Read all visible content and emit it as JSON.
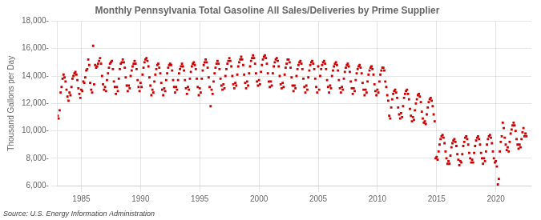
{
  "chart_data": {
    "type": "scatter",
    "title": "Monthly Pennsylvania Total Gasoline All Sales/Deliveries by Prime Supplier",
    "y_label": "Thousand Gallons per Day",
    "annotations": [
      "Source: U.S. Energy Information Administration"
    ],
    "color": "#cc0000",
    "marker": "square",
    "grid": true,
    "xlim": [
      1983.0,
      2023.0
    ],
    "xticks": [
      1985,
      1990,
      1995,
      2000,
      2005,
      2010,
      2015,
      2020
    ],
    "ylim": [
      6000,
      18000
    ],
    "yticks": [
      {
        "value": 6000,
        "label": "6,000-"
      },
      {
        "value": 8000,
        "label": "8,000-"
      },
      {
        "value": 10000,
        "label": "10,000-"
      },
      {
        "value": 12000,
        "label": "12,000-"
      },
      {
        "value": 14000,
        "label": "14,000-"
      },
      {
        "value": 16000,
        "label": "16,000-"
      },
      {
        "value": 18000,
        "label": "18,000-"
      }
    ],
    "x": [
      1983.0,
      1983.083,
      1983.167,
      1983.25,
      1983.333,
      1983.417,
      1983.5,
      1983.583,
      1983.667,
      1983.75,
      1983.833,
      1983.917,
      1984.0,
      1984.083,
      1984.167,
      1984.25,
      1984.333,
      1984.417,
      1984.5,
      1984.583,
      1984.667,
      1984.75,
      1984.833,
      1984.917,
      1985.0,
      1985.083,
      1985.167,
      1985.25,
      1985.333,
      1985.417,
      1985.5,
      1985.583,
      1985.667,
      1985.75,
      1985.833,
      1985.917,
      1986.0,
      1986.083,
      1986.167,
      1986.25,
      1986.333,
      1986.417,
      1986.5,
      1986.583,
      1986.667,
      1986.75,
      1986.833,
      1986.917,
      1987.0,
      1987.083,
      1987.167,
      1987.25,
      1987.333,
      1987.417,
      1987.5,
      1987.583,
      1987.667,
      1987.75,
      1987.833,
      1987.917,
      1988.0,
      1988.083,
      1988.167,
      1988.25,
      1988.333,
      1988.417,
      1988.5,
      1988.583,
      1988.667,
      1988.75,
      1988.833,
      1988.917,
      1989.0,
      1989.083,
      1989.167,
      1989.25,
      1989.333,
      1989.417,
      1989.5,
      1989.583,
      1989.667,
      1989.75,
      1989.833,
      1989.917,
      1990.0,
      1990.083,
      1990.167,
      1990.25,
      1990.333,
      1990.417,
      1990.5,
      1990.583,
      1990.667,
      1990.75,
      1990.833,
      1990.917,
      1991.0,
      1991.083,
      1991.167,
      1991.25,
      1991.333,
      1991.417,
      1991.5,
      1991.583,
      1991.667,
      1991.75,
      1991.833,
      1991.917,
      1992.0,
      1992.083,
      1992.167,
      1992.25,
      1992.333,
      1992.417,
      1992.5,
      1992.583,
      1992.667,
      1992.75,
      1992.833,
      1992.917,
      1993.0,
      1993.083,
      1993.167,
      1993.25,
      1993.333,
      1993.417,
      1993.5,
      1993.583,
      1993.667,
      1993.75,
      1993.833,
      1993.917,
      1994.0,
      1994.083,
      1994.167,
      1994.25,
      1994.333,
      1994.417,
      1994.5,
      1994.583,
      1994.667,
      1994.75,
      1994.833,
      1994.917,
      1995.0,
      1995.083,
      1995.167,
      1995.25,
      1995.333,
      1995.417,
      1995.5,
      1995.583,
      1995.667,
      1995.75,
      1995.833,
      1995.917,
      1996.0,
      1996.083,
      1996.167,
      1996.25,
      1996.333,
      1996.417,
      1996.5,
      1996.583,
      1996.667,
      1996.75,
      1996.833,
      1996.917,
      1997.0,
      1997.083,
      1997.167,
      1997.25,
      1997.333,
      1997.417,
      1997.5,
      1997.583,
      1997.667,
      1997.75,
      1997.833,
      1997.917,
      1998.0,
      1998.083,
      1998.167,
      1998.25,
      1998.333,
      1998.417,
      1998.5,
      1998.583,
      1998.667,
      1998.75,
      1998.833,
      1998.917,
      1999.0,
      1999.083,
      1999.167,
      1999.25,
      1999.333,
      1999.417,
      1999.5,
      1999.583,
      1999.667,
      1999.75,
      1999.833,
      1999.917,
      2000.0,
      2000.083,
      2000.167,
      2000.25,
      2000.333,
      2000.417,
      2000.5,
      2000.583,
      2000.667,
      2000.75,
      2000.833,
      2000.917,
      2001.0,
      2001.083,
      2001.167,
      2001.25,
      2001.333,
      2001.417,
      2001.5,
      2001.583,
      2001.667,
      2001.75,
      2001.833,
      2001.917,
      2002.0,
      2002.083,
      2002.167,
      2002.25,
      2002.333,
      2002.417,
      2002.5,
      2002.583,
      2002.667,
      2002.75,
      2002.833,
      2002.917,
      2003.0,
      2003.083,
      2003.167,
      2003.25,
      2003.333,
      2003.417,
      2003.5,
      2003.583,
      2003.667,
      2003.75,
      2003.833,
      2003.917,
      2004.0,
      2004.083,
      2004.167,
      2004.25,
      2004.333,
      2004.417,
      2004.5,
      2004.583,
      2004.667,
      2004.75,
      2004.833,
      2004.917,
      2005.0,
      2005.083,
      2005.167,
      2005.25,
      2005.333,
      2005.417,
      2005.5,
      2005.583,
      2005.667,
      2005.75,
      2005.833,
      2005.917,
      2006.0,
      2006.083,
      2006.167,
      2006.25,
      2006.333,
      2006.417,
      2006.5,
      2006.583,
      2006.667,
      2006.75,
      2006.833,
      2006.917,
      2007.0,
      2007.083,
      2007.167,
      2007.25,
      2007.333,
      2007.417,
      2007.5,
      2007.583,
      2007.667,
      2007.75,
      2007.833,
      2007.917,
      2008.0,
      2008.083,
      2008.167,
      2008.25,
      2008.333,
      2008.417,
      2008.5,
      2008.583,
      2008.667,
      2008.75,
      2008.833,
      2008.917,
      2009.0,
      2009.083,
      2009.167,
      2009.25,
      2009.333,
      2009.417,
      2009.5,
      2009.583,
      2009.667,
      2009.75,
      2009.833,
      2009.917,
      2010.0,
      2010.083,
      2010.167,
      2010.25,
      2010.333,
      2010.417,
      2010.5,
      2010.583,
      2010.667,
      2010.75,
      2010.833,
      2010.917,
      2011.0,
      2011.083,
      2011.167,
      2011.25,
      2011.333,
      2011.417,
      2011.5,
      2011.583,
      2011.667,
      2011.75,
      2011.833,
      2011.917,
      2012.0,
      2012.083,
      2012.167,
      2012.25,
      2012.333,
      2012.417,
      2012.5,
      2012.583,
      2012.667,
      2012.75,
      2012.833,
      2012.917,
      2013.0,
      2013.083,
      2013.167,
      2013.25,
      2013.333,
      2013.417,
      2013.5,
      2013.583,
      2013.667,
      2013.75,
      2013.833,
      2013.917,
      2014.0,
      2014.083,
      2014.167,
      2014.25,
      2014.333,
      2014.417,
      2014.5,
      2014.583,
      2014.667,
      2014.75,
      2014.833,
      2014.917,
      2015.0,
      2015.083,
      2015.167,
      2015.25,
      2015.333,
      2015.417,
      2015.5,
      2015.583,
      2015.667,
      2015.75,
      2015.833,
      2015.917,
      2016.0,
      2016.083,
      2016.167,
      2016.25,
      2016.333,
      2016.417,
      2016.5,
      2016.583,
      2016.667,
      2016.75,
      2016.833,
      2016.917,
      2017.0,
      2017.083,
      2017.167,
      2017.25,
      2017.333,
      2017.417,
      2017.5,
      2017.583,
      2017.667,
      2017.75,
      2017.833,
      2017.917,
      2018.0,
      2018.083,
      2018.167,
      2018.25,
      2018.333,
      2018.417,
      2018.5,
      2018.583,
      2018.667,
      2018.75,
      2018.833,
      2018.917,
      2019.0,
      2019.083,
      2019.167,
      2019.25,
      2019.333,
      2019.417,
      2019.5,
      2019.583,
      2019.667,
      2019.75,
      2019.833,
      2019.917,
      2020.0,
      2020.083,
      2020.167,
      2020.25,
      2020.333,
      2020.417,
      2020.5,
      2020.583,
      2020.667,
      2020.75,
      2020.833,
      2020.917,
      2021.0,
      2021.083,
      2021.167,
      2021.25,
      2021.333,
      2021.417,
      2021.5,
      2021.583,
      2021.667,
      2021.75,
      2021.833,
      2021.917,
      2022.0,
      2022.083,
      2022.167,
      2022.25,
      2022.333,
      2022.417,
      2022.5,
      2022.583
    ],
    "values": [
      11100,
      10900,
      11500,
      12800,
      13200,
      13800,
      14100,
      13900,
      13600,
      13000,
      12500,
      12200,
      12800,
      12600,
      13200,
      13800,
      14000,
      14200,
      14300,
      14100,
      13700,
      13100,
      12700,
      12400,
      13000,
      12900,
      13600,
      13500,
      13900,
      14400,
      14500,
      15200,
      14800,
      13500,
      13000,
      12800,
      16200,
      13400,
      14800,
      14600,
      14700,
      14900,
      15100,
      15300,
      14900,
      14000,
      13400,
      13000,
      13200,
      12900,
      13700,
      14200,
      14600,
      14900,
      15000,
      15100,
      14500,
      13600,
      13200,
      12700,
      13200,
      12900,
      13800,
      14500,
      14900,
      15000,
      15200,
      15000,
      14600,
      13900,
      13300,
      12900,
      13300,
      13100,
      14000,
      14400,
      14700,
      14900,
      15100,
      14900,
      14500,
      13700,
      13200,
      12900,
      13500,
      13200,
      14100,
      14600,
      15000,
      15200,
      15300,
      15100,
      14700,
      13900,
      13300,
      12600,
      13000,
      12800,
      13600,
      14100,
      14500,
      14800,
      14900,
      14600,
      14200,
      13500,
      13000,
      12600,
      13100,
      12900,
      13700,
      14200,
      14600,
      14800,
      14900,
      14800,
      14400,
      13700,
      13200,
      12800,
      13200,
      13000,
      13700,
      14200,
      14500,
      14700,
      14900,
      14700,
      14400,
      13700,
      13100,
      12700,
      13200,
      13000,
      13800,
      14300,
      14700,
      14900,
      15000,
      14800,
      14500,
      13800,
      13200,
      12600,
      13100,
      12800,
      13800,
      14400,
      14800,
      15000,
      15200,
      15000,
      14600,
      13900,
      13200,
      11800,
      13000,
      12700,
      13600,
      14200,
      14600,
      14900,
      15100,
      14900,
      14500,
      13800,
      13300,
      13000,
      13400,
      13100,
      14000,
      14500,
      14900,
      15100,
      15300,
      15100,
      14700,
      14000,
      13400,
      13100,
      13500,
      13300,
      14100,
      14700,
      15000,
      15200,
      15400,
      15200,
      14800,
      14100,
      13500,
      13100,
      13600,
      13300,
      14200,
      14700,
      15100,
      15300,
      15500,
      15300,
      14900,
      14200,
      13600,
      13300,
      13700,
      13400,
      14300,
      14800,
      15200,
      15400,
      15500,
      15300,
      14900,
      14200,
      13600,
      13200,
      13600,
      13300,
      14200,
      14700,
      15000,
      15200,
      15300,
      15100,
      14700,
      14000,
      13400,
      13100,
      13500,
      13200,
      14100,
      14600,
      14900,
      15200,
      15200,
      15000,
      14600,
      13900,
      13300,
      12900,
      13300,
      13100,
      14000,
      14500,
      14800,
      15000,
      15100,
      14900,
      14500,
      13800,
      13200,
      12800,
      13300,
      13000,
      13900,
      14400,
      14800,
      15000,
      15100,
      14900,
      14500,
      13800,
      13200,
      12800,
      14700,
      13000,
      14000,
      14500,
      14800,
      15000,
      15100,
      14900,
      14500,
      13700,
      13200,
      12800,
      13300,
      13100,
      14000,
      14400,
      14700,
      14900,
      15000,
      14800,
      14400,
      13700,
      13100,
      12800,
      13200,
      13000,
      13800,
      14300,
      14600,
      14800,
      14900,
      14700,
      14300,
      13600,
      13100,
      12700,
      13100,
      12900,
      13700,
      14200,
      14500,
      14700,
      14800,
      14600,
      14200,
      13500,
      13000,
      12600,
      13000,
      12800,
      13600,
      14100,
      14400,
      14600,
      14700,
      14500,
      14100,
      13400,
      12900,
      12600,
      13000,
      12800,
      13600,
      14100,
      14400,
      14600,
      14600,
      14400,
      13600,
      13200,
      12600,
      12200,
      11100,
      10900,
      11700,
      12300,
      12700,
      12900,
      13000,
      12800,
      12400,
      11700,
      11200,
      10900,
      11300,
      11000,
      11800,
      12400,
      12700,
      12900,
      13000,
      12700,
      12300,
      11600,
      11100,
      10700,
      11000,
      10800,
      11500,
      12000,
      12300,
      12600,
      12700,
      12500,
      12100,
      11400,
      10900,
      10600,
      10700,
      10500,
      11200,
      11700,
      12100,
      12300,
      12400,
      12200,
      11800,
      11200,
      10700,
      8000,
      8100,
      7900,
      8500,
      9000,
      9400,
      9600,
      9700,
      9500,
      9100,
      8500,
      8000,
      7600,
      7800,
      7600,
      8200,
      8800,
      9100,
      9300,
      9400,
      9200,
      8900,
      8300,
      7900,
      7500,
      7800,
      7700,
      8300,
      8900,
      9200,
      9500,
      9600,
      9400,
      9000,
      8400,
      8000,
      7700,
      7900,
      7700,
      8400,
      8900,
      9300,
      9500,
      9600,
      9400,
      9000,
      8400,
      8000,
      7600,
      8000,
      7800,
      8500,
      9000,
      9400,
      9600,
      9700,
      9500,
      9100,
      8500,
      8000,
      7700,
      7800,
      7400,
      6100,
      6500,
      8500,
      9200,
      9600,
      10600,
      10200,
      9500,
      9000,
      8600,
      8800,
      8500,
      9200,
      9800,
      10100,
      10400,
      10600,
      10400,
      10000,
      9400,
      9000,
      8700,
      9000,
      8800,
      9400,
      9900,
      10200,
      9600,
      9800,
      9600
    ]
  }
}
